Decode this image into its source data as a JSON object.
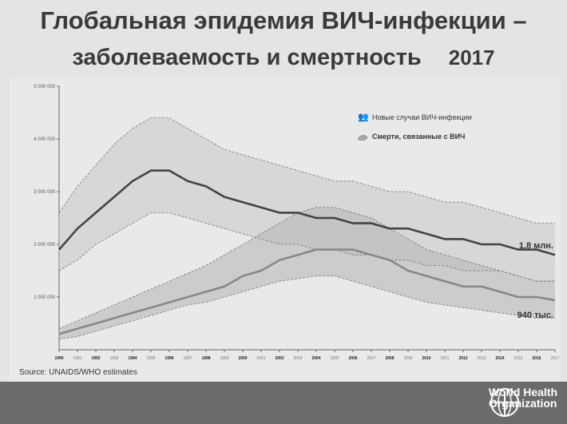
{
  "title_line1": "Глобальная эпидемия ВИЧ-инфекции –",
  "title_line2": "заболеваемость и смертность",
  "title_year": "2017",
  "source": "Source: UNAIDS/WHO estimates",
  "org": {
    "line1": "World Health",
    "line2": "Organization"
  },
  "chart_data": {
    "type": "line",
    "x": [
      1990,
      1991,
      1992,
      1993,
      1994,
      1995,
      1996,
      1997,
      1998,
      1999,
      2000,
      2001,
      2002,
      2003,
      2004,
      2005,
      2006,
      2007,
      2008,
      2009,
      2010,
      2011,
      2012,
      2013,
      2014,
      2015,
      2016,
      2017
    ],
    "ylim": [
      0,
      5000000
    ],
    "yticks": [
      1000000,
      2000000,
      3000000,
      4000000,
      5000000
    ],
    "ytick_labels": [
      "1 000 000",
      "2 000 000",
      "3 000 000",
      "4 000 000",
      "5 000 000"
    ],
    "series": [
      {
        "name": "Новые случаи ВИЧ-инфекции",
        "color": "#444444",
        "values": [
          1900000,
          2300000,
          2600000,
          2900000,
          3200000,
          3400000,
          3400000,
          3200000,
          3100000,
          2900000,
          2800000,
          2700000,
          2600000,
          2600000,
          2500000,
          2500000,
          2400000,
          2400000,
          2300000,
          2300000,
          2200000,
          2100000,
          2100000,
          2000000,
          2000000,
          1900000,
          1900000,
          1800000
        ],
        "lower": [
          1500000,
          1700000,
          2000000,
          2200000,
          2400000,
          2600000,
          2600000,
          2500000,
          2400000,
          2300000,
          2200000,
          2100000,
          2000000,
          2000000,
          1900000,
          1900000,
          1800000,
          1800000,
          1700000,
          1700000,
          1600000,
          1600000,
          1500000,
          1500000,
          1500000,
          1400000,
          1300000,
          1300000
        ],
        "upper": [
          2600000,
          3100000,
          3500000,
          3900000,
          4200000,
          4400000,
          4400000,
          4200000,
          4000000,
          3800000,
          3700000,
          3600000,
          3500000,
          3400000,
          3300000,
          3200000,
          3200000,
          3100000,
          3000000,
          3000000,
          2900000,
          2800000,
          2800000,
          2700000,
          2600000,
          2500000,
          2400000,
          2400000
        ],
        "end_label": "1,8 млн."
      },
      {
        "name": "Смерти, связанные с ВИЧ",
        "color": "#888888",
        "values": [
          300000,
          400000,
          500000,
          600000,
          700000,
          800000,
          900000,
          1000000,
          1100000,
          1200000,
          1400000,
          1500000,
          1700000,
          1800000,
          1900000,
          1900000,
          1900000,
          1800000,
          1700000,
          1500000,
          1400000,
          1300000,
          1200000,
          1200000,
          1100000,
          1000000,
          1000000,
          940000
        ],
        "lower": [
          200000,
          250000,
          350000,
          450000,
          550000,
          650000,
          750000,
          850000,
          900000,
          1000000,
          1100000,
          1200000,
          1300000,
          1350000,
          1400000,
          1400000,
          1300000,
          1200000,
          1100000,
          1000000,
          900000,
          850000,
          800000,
          750000,
          700000,
          650000,
          600000,
          600000
        ],
        "upper": [
          400000,
          550000,
          700000,
          850000,
          1000000,
          1150000,
          1300000,
          1450000,
          1600000,
          1800000,
          2000000,
          2200000,
          2400000,
          2600000,
          2700000,
          2700000,
          2600000,
          2500000,
          2300000,
          2100000,
          1900000,
          1800000,
          1700000,
          1600000,
          1500000,
          1400000,
          1300000,
          1300000
        ],
        "end_label": "940 тыс."
      }
    ],
    "legend_position": "top-right"
  }
}
